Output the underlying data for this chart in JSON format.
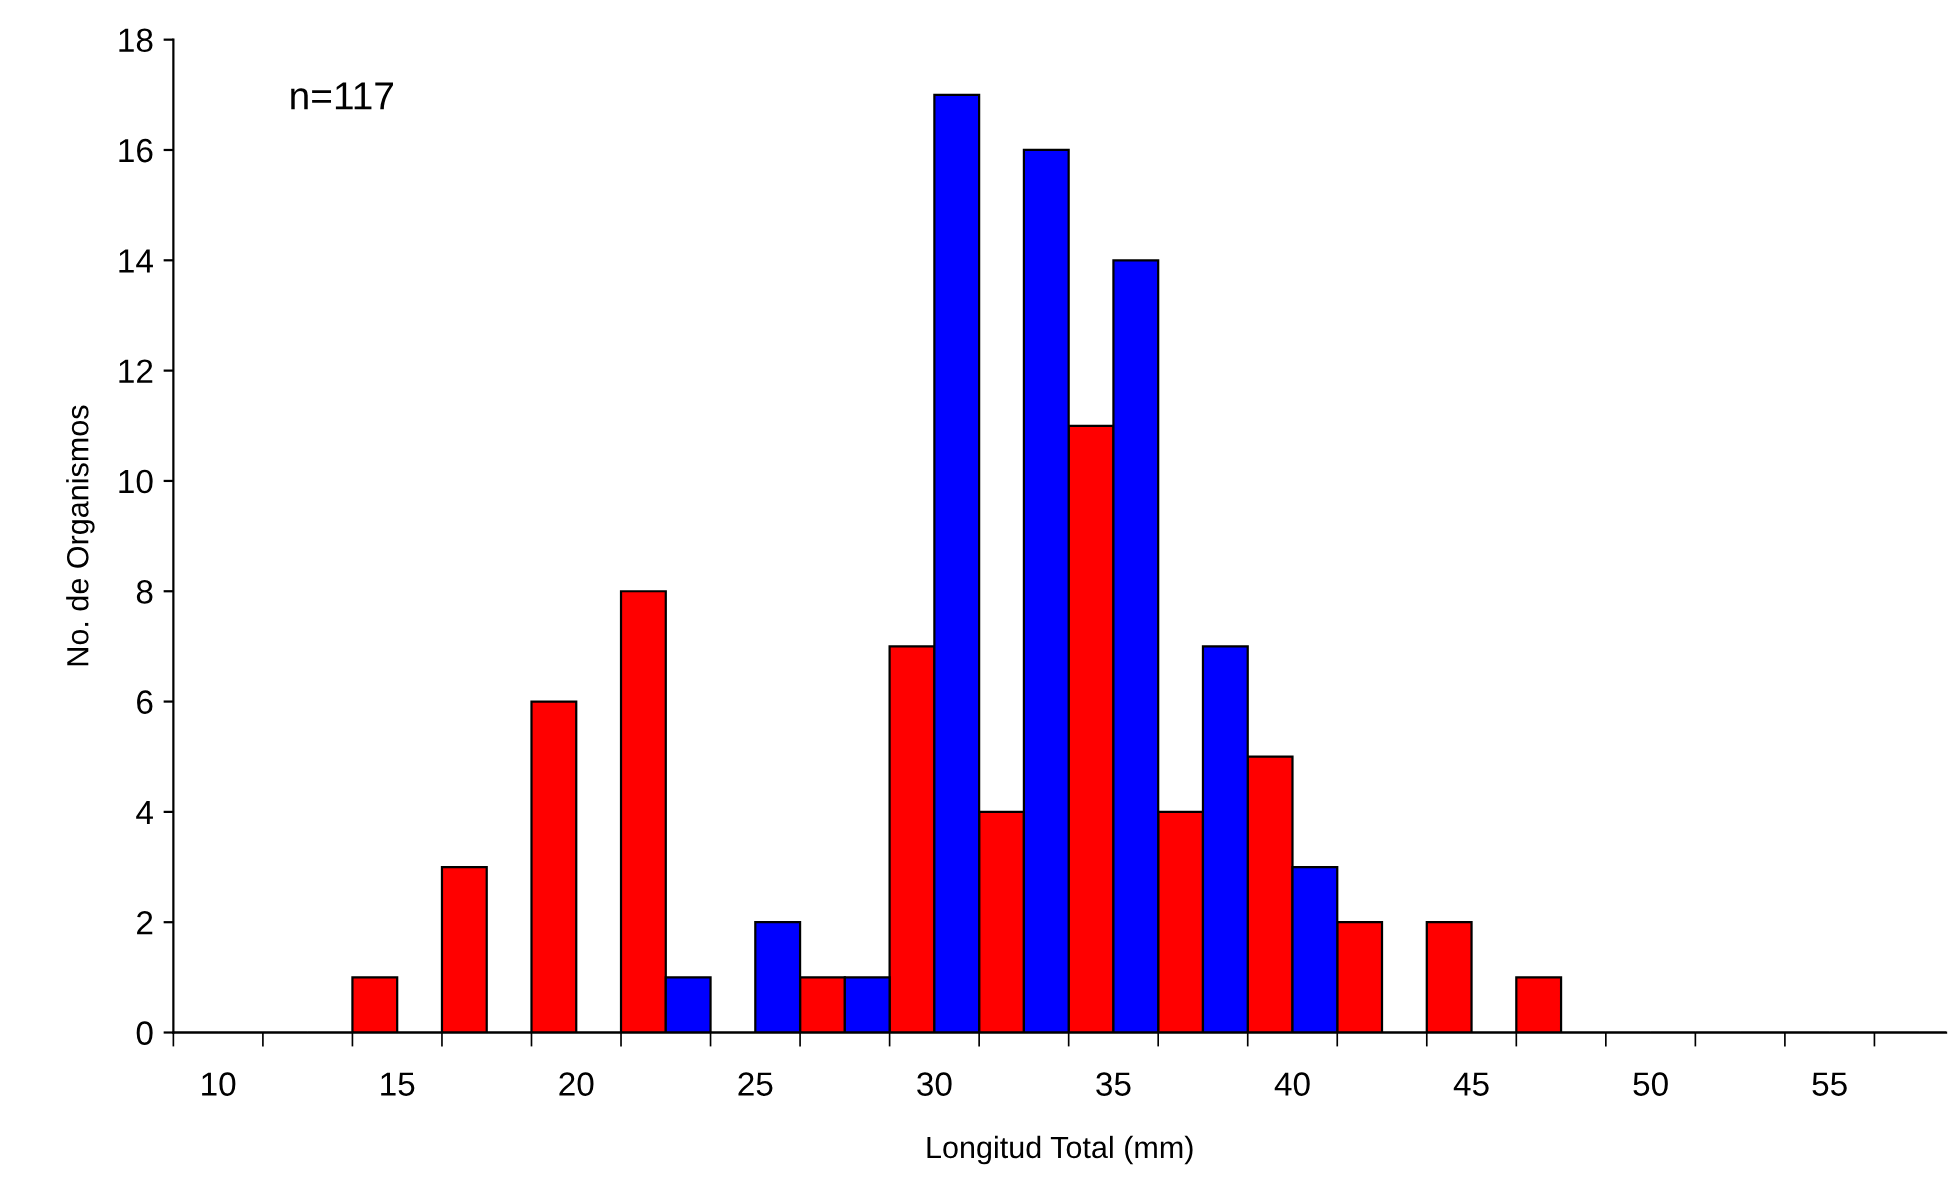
{
  "chart_data": {
    "type": "bar",
    "xlabel": "Longitud Total (mm)",
    "ylabel": "No. de Organismos",
    "annotations": [
      "n=117"
    ],
    "categories": [
      "10",
      null,
      "15",
      null,
      "20",
      null,
      "25",
      null,
      "30",
      null,
      "35",
      null,
      "40",
      null,
      "45",
      null,
      "50",
      null,
      "55",
      null
    ],
    "series": [
      {
        "color": "#ff0000",
        "values": [
          0,
          0,
          1,
          3,
          6,
          8,
          0,
          1,
          7,
          4,
          11,
          4,
          5,
          2,
          2,
          1,
          0,
          0,
          0,
          0
        ]
      },
      {
        "color": "#0000ff",
        "values": [
          0,
          0,
          0,
          0,
          0,
          1,
          2,
          1,
          17,
          16,
          14,
          7,
          3,
          0,
          0,
          0,
          0,
          0,
          0,
          0
        ]
      }
    ],
    "ylim": [
      0,
      18
    ],
    "yticks": [
      0,
      2,
      4,
      6,
      8,
      10,
      12,
      14,
      16,
      18
    ],
    "grid": false,
    "legend": false
  }
}
